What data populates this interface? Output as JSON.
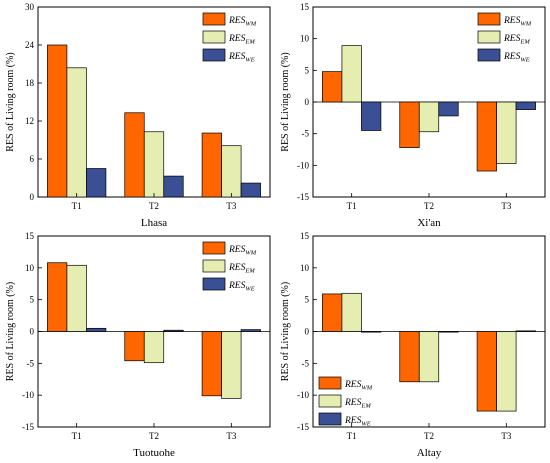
{
  "chart_data": [
    {
      "type": "bar",
      "title": "",
      "xlabel": "Lhasa",
      "ylabel": "RES of Living room (%)",
      "ylim": [
        0,
        30
      ],
      "yticks": [
        0,
        6,
        12,
        18,
        24,
        30
      ],
      "categories": [
        "T1",
        "T2",
        "T3"
      ],
      "legend_position": "top-right",
      "series": [
        {
          "name": "RES",
          "subscript": "WM",
          "color": "#ff6600",
          "values": [
            24.0,
            13.3,
            10.1
          ]
        },
        {
          "name": "RES",
          "subscript": "EM",
          "color": "#e5eeb0",
          "values": [
            20.4,
            10.3,
            8.1
          ]
        },
        {
          "name": "RES",
          "subscript": "WE",
          "color": "#3a4f94",
          "values": [
            4.5,
            3.3,
            2.2
          ]
        }
      ]
    },
    {
      "type": "bar",
      "title": "",
      "xlabel": "Xi'an",
      "ylabel": "RES of Living room (%)",
      "ylim": [
        -15,
        15
      ],
      "yticks": [
        -15,
        -10,
        -5,
        0,
        5,
        10,
        15
      ],
      "categories": [
        "T1",
        "T2",
        "T3"
      ],
      "legend_position": "top-right",
      "series": [
        {
          "name": "RES",
          "subscript": "WM",
          "color": "#ff6600",
          "values": [
            4.8,
            -7.2,
            -10.9
          ]
        },
        {
          "name": "RES",
          "subscript": "EM",
          "color": "#e5eeb0",
          "values": [
            8.9,
            -4.7,
            -9.7
          ]
        },
        {
          "name": "RES",
          "subscript": "WE",
          "color": "#3a4f94",
          "values": [
            -4.5,
            -2.2,
            -1.2
          ]
        }
      ]
    },
    {
      "type": "bar",
      "title": "",
      "xlabel": "Tuotuohe",
      "ylabel": "RES of Living room (%)",
      "ylim": [
        -15,
        15
      ],
      "yticks": [
        -15,
        -10,
        -5,
        0,
        5,
        10,
        15
      ],
      "categories": [
        "T1",
        "T2",
        "T3"
      ],
      "legend_position": "top-right",
      "series": [
        {
          "name": "RES",
          "subscript": "WM",
          "color": "#ff6600",
          "values": [
            10.8,
            -4.6,
            -10.1
          ]
        },
        {
          "name": "RES",
          "subscript": "EM",
          "color": "#e5eeb0",
          "values": [
            10.4,
            -4.9,
            -10.5
          ]
        },
        {
          "name": "RES",
          "subscript": "WE",
          "color": "#3a4f94",
          "values": [
            0.5,
            0.2,
            0.3
          ]
        }
      ]
    },
    {
      "type": "bar",
      "title": "",
      "xlabel": "Altay",
      "ylabel": "RES of Living room (%)",
      "ylim": [
        -15,
        15
      ],
      "yticks": [
        -15,
        -10,
        -5,
        0,
        5,
        10,
        15
      ],
      "categories": [
        "T1",
        "T2",
        "T3"
      ],
      "legend_position": "bottom-left",
      "series": [
        {
          "name": "RES",
          "subscript": "WM",
          "color": "#ff6600",
          "values": [
            5.9,
            -7.9,
            -12.5
          ]
        },
        {
          "name": "RES",
          "subscript": "EM",
          "color": "#e5eeb0",
          "values": [
            6.0,
            -7.9,
            -12.5
          ]
        },
        {
          "name": "RES",
          "subscript": "WE",
          "color": "#3a4f94",
          "values": [
            -0.1,
            -0.1,
            0.1
          ]
        }
      ]
    }
  ]
}
